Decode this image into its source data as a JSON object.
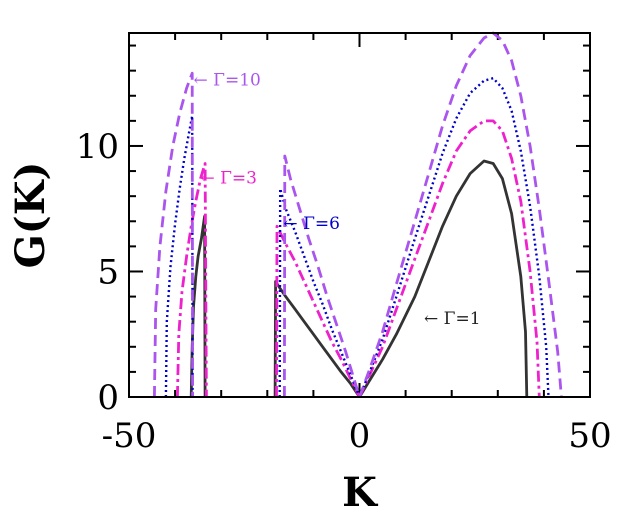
{
  "chart_data": {
    "type": "line",
    "xlabel": "K",
    "ylabel": "G(K)",
    "xlim": [
      -50,
      50
    ],
    "ylim": [
      0,
      14.5
    ],
    "x_ticks": [
      -50,
      0,
      50
    ],
    "y_ticks": [
      0,
      5,
      10
    ],
    "x_tick_labels": [
      "-50",
      "0",
      "50"
    ],
    "y_tick_labels": [
      "0",
      "5",
      "10"
    ],
    "x_minor_step": 10,
    "y_minor_step": 1,
    "grid": false,
    "series": [
      {
        "gamma": 1,
        "color": "#333333",
        "style": "solid",
        "segments": [
          [
            [
              -36.5,
              0
            ],
            [
              -36.3,
              2.0
            ],
            [
              -36,
              3.6
            ],
            [
              -35.5,
              4.8
            ],
            [
              -35,
              5.6
            ],
            [
              -34.3,
              6.3
            ],
            [
              -33.6,
              7.2
            ],
            [
              -33.5,
              0
            ]
          ],
          [
            [
              -18.3,
              0
            ],
            [
              -18.2,
              4.6
            ],
            [
              -17.5,
              4.4
            ],
            [
              -16,
              4.0
            ],
            [
              -14,
              3.5
            ],
            [
              -12,
              3.0
            ],
            [
              -10,
              2.5
            ],
            [
              -8,
              2.0
            ],
            [
              -6,
              1.5
            ],
            [
              -4,
              1.0
            ],
            [
              -2,
              0.55
            ],
            [
              0,
              0
            ]
          ],
          [
            [
              0,
              0
            ],
            [
              2,
              0.6
            ],
            [
              5,
              1.5
            ],
            [
              8,
              2.5
            ],
            [
              12,
              4.0
            ],
            [
              15,
              5.4
            ],
            [
              18,
              6.8
            ],
            [
              21,
              8.0
            ],
            [
              24,
              8.9
            ],
            [
              27,
              9.4
            ],
            [
              29,
              9.3
            ],
            [
              31,
              8.7
            ],
            [
              33,
              7.3
            ],
            [
              35,
              4.8
            ],
            [
              36,
              2.6
            ],
            [
              36.3,
              0
            ]
          ]
        ]
      },
      {
        "gamma": 3,
        "color": "#ee22cc",
        "style": "dashdot",
        "segments": [
          [
            [
              -39.5,
              0
            ],
            [
              -39.2,
              2.5
            ],
            [
              -38.5,
              4.2
            ],
            [
              -37.5,
              5.6
            ],
            [
              -36.5,
              6.8
            ],
            [
              -35.5,
              7.8
            ],
            [
              -34.5,
              8.7
            ],
            [
              -33.5,
              9.3
            ],
            [
              -33.2,
              0
            ]
          ],
          [
            [
              -18,
              0
            ],
            [
              -17.9,
              6.8
            ],
            [
              -16,
              6.1
            ],
            [
              -14,
              5.4
            ],
            [
              -12,
              4.6
            ],
            [
              -10,
              3.8
            ],
            [
              -8,
              3.0
            ],
            [
              -6,
              2.2
            ],
            [
              -4,
              1.5
            ],
            [
              -2,
              0.75
            ],
            [
              0,
              0
            ]
          ],
          [
            [
              0,
              0
            ],
            [
              2,
              0.8
            ],
            [
              5,
              2.0
            ],
            [
              8,
              3.5
            ],
            [
              12,
              5.5
            ],
            [
              15,
              7.0
            ],
            [
              18,
              8.5
            ],
            [
              21,
              9.8
            ],
            [
              24,
              10.6
            ],
            [
              27,
              11.0
            ],
            [
              29,
              11.0
            ],
            [
              31,
              10.6
            ],
            [
              33,
              9.5
            ],
            [
              35,
              7.8
            ],
            [
              37,
              5.0
            ],
            [
              38.5,
              2.2
            ],
            [
              39,
              0
            ]
          ]
        ]
      },
      {
        "gamma": 6,
        "color": "#0000cc",
        "style": "dotted",
        "segments": [
          [
            [
              -42,
              0
            ],
            [
              -41.8,
              3.0
            ],
            [
              -41,
              5.2
            ],
            [
              -40,
              6.9
            ],
            [
              -39,
              8.3
            ],
            [
              -38,
              9.5
            ],
            [
              -37,
              10.5
            ],
            [
              -36.3,
              11.2
            ],
            [
              -36.2,
              0
            ]
          ],
          [
            [
              -17.3,
              0
            ],
            [
              -17.2,
              8.3
            ],
            [
              -16,
              7.5
            ],
            [
              -14,
              6.6
            ],
            [
              -12,
              5.6
            ],
            [
              -10,
              4.6
            ],
            [
              -8,
              3.7
            ],
            [
              -6,
              2.7
            ],
            [
              -4,
              1.8
            ],
            [
              -2,
              0.9
            ],
            [
              0,
              0
            ]
          ],
          [
            [
              0,
              0
            ],
            [
              2,
              0.9
            ],
            [
              5,
              2.3
            ],
            [
              8,
              4.0
            ],
            [
              12,
              6.3
            ],
            [
              15,
              8.0
            ],
            [
              18,
              9.7
            ],
            [
              21,
              11.1
            ],
            [
              24,
              12.1
            ],
            [
              27,
              12.6
            ],
            [
              29,
              12.7
            ],
            [
              31,
              12.3
            ],
            [
              33,
              11.4
            ],
            [
              35,
              9.8
            ],
            [
              37,
              7.6
            ],
            [
              39,
              4.8
            ],
            [
              40.5,
              2.0
            ],
            [
              41,
              0
            ]
          ]
        ]
      },
      {
        "gamma": 10,
        "color": "#aa55ee",
        "style": "dashed",
        "segments": [
          [
            [
              -44.5,
              0
            ],
            [
              -44.2,
              3.5
            ],
            [
              -43.3,
              6.0
            ],
            [
              -42,
              8.2
            ],
            [
              -40.5,
              10.0
            ],
            [
              -39,
              11.3
            ],
            [
              -37.5,
              12.3
            ],
            [
              -36.3,
              12.9
            ],
            [
              -36.2,
              0
            ]
          ],
          [
            [
              -16.3,
              0
            ],
            [
              -16.2,
              9.6
            ],
            [
              -15,
              8.7
            ],
            [
              -13,
              7.5
            ],
            [
              -11,
              6.3
            ],
            [
              -9,
              5.2
            ],
            [
              -7,
              4.0
            ],
            [
              -5,
              2.9
            ],
            [
              -3,
              1.8
            ],
            [
              -1,
              0.6
            ],
            [
              0,
              0
            ]
          ],
          [
            [
              0,
              0
            ],
            [
              2,
              1.0
            ],
            [
              5,
              2.6
            ],
            [
              8,
              4.5
            ],
            [
              12,
              7.0
            ],
            [
              15,
              8.9
            ],
            [
              18,
              10.8
            ],
            [
              21,
              12.4
            ],
            [
              24,
              13.6
            ],
            [
              27,
              14.3
            ],
            [
              29,
              14.5
            ],
            [
              31,
              14.2
            ],
            [
              33,
              13.4
            ],
            [
              35,
              12.0
            ],
            [
              37,
              10.0
            ],
            [
              39,
              7.5
            ],
            [
              41,
              4.7
            ],
            [
              43,
              1.8
            ],
            [
              43.8,
              0
            ]
          ]
        ]
      }
    ],
    "annotations": [
      {
        "text": "← Γ=10",
        "color": "#aa55ee",
        "x": -36,
        "y": 12.4
      },
      {
        "text": "← Γ=3",
        "color": "#ee22cc",
        "x": -34.5,
        "y": 8.5
      },
      {
        "text": "← Γ=6",
        "color": "#0000cc",
        "x": -16.5,
        "y": 6.7
      },
      {
        "text": "← Γ=1",
        "color": "#222222",
        "x": 14,
        "y": 2.9
      }
    ]
  }
}
